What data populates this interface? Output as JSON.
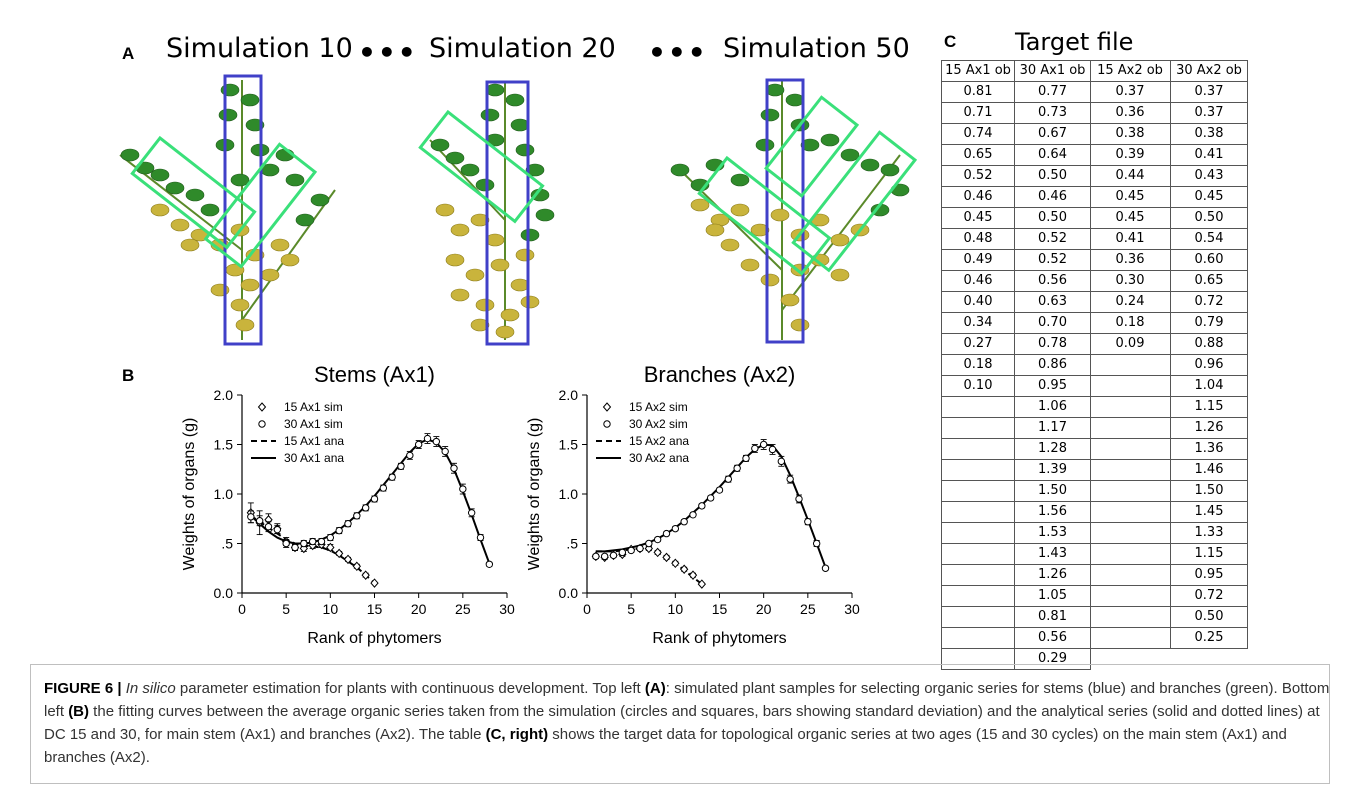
{
  "panel_a": {
    "label": "A",
    "titles": [
      "Simulation 10",
      "Simulation 20",
      "Simulation 50"
    ],
    "ellipsis": "•••"
  },
  "panel_b": {
    "label": "B"
  },
  "panel_c": {
    "label": "C",
    "title": "Target file",
    "headers": [
      "15 Ax1 ob",
      "30 Ax1 ob",
      "15 Ax2 ob",
      "30 Ax2 ob"
    ],
    "col_15ax1": [
      "0.81",
      "0.71",
      "0.74",
      "0.65",
      "0.52",
      "0.46",
      "0.45",
      "0.48",
      "0.49",
      "0.46",
      "0.40",
      "0.34",
      "0.27",
      "0.18",
      "0.10"
    ],
    "col_30ax1": [
      "0.77",
      "0.73",
      "0.67",
      "0.64",
      "0.50",
      "0.46",
      "0.50",
      "0.52",
      "0.52",
      "0.56",
      "0.63",
      "0.70",
      "0.78",
      "0.86",
      "0.95",
      "1.06",
      "1.17",
      "1.28",
      "1.39",
      "1.50",
      "1.56",
      "1.53",
      "1.43",
      "1.26",
      "1.05",
      "0.81",
      "0.56",
      "0.29"
    ],
    "col_15ax2": [
      "0.37",
      "0.36",
      "0.38",
      "0.39",
      "0.44",
      "0.45",
      "0.45",
      "0.41",
      "0.36",
      "0.30",
      "0.24",
      "0.18",
      "0.09"
    ],
    "col_30ax2": [
      "0.37",
      "0.37",
      "0.38",
      "0.41",
      "0.43",
      "0.45",
      "0.50",
      "0.54",
      "0.60",
      "0.65",
      "0.72",
      "0.79",
      "0.88",
      "0.96",
      "1.04",
      "1.15",
      "1.26",
      "1.36",
      "1.46",
      "1.50",
      "1.45",
      "1.33",
      "1.15",
      "0.95",
      "0.72",
      "0.50",
      "0.25"
    ]
  },
  "chart_data": [
    {
      "type": "scatter",
      "title": "Stems (Ax1)",
      "xlabel": "Rank of phytomers",
      "ylabel": "Weights of organs (g)",
      "xlim": [
        0,
        30
      ],
      "ylim": [
        0,
        2.0
      ],
      "xticks": [
        "0",
        "5",
        "10",
        "15",
        "20",
        "25",
        "30"
      ],
      "yticks": [
        "0.0",
        ".5",
        "1.0",
        "1.5",
        "2.0"
      ],
      "legend": [
        "15 Ax1 sim",
        "30 Ax1 sim",
        "15 Ax1 ana",
        "30 Ax1 ana"
      ],
      "series": [
        {
          "name": "15 Ax1 sim",
          "marker": "diamond",
          "x": [
            1,
            2,
            3,
            4,
            5,
            6,
            7,
            8,
            9,
            10,
            11,
            12,
            13,
            14,
            15
          ],
          "y": [
            0.81,
            0.71,
            0.74,
            0.65,
            0.52,
            0.46,
            0.45,
            0.48,
            0.49,
            0.46,
            0.4,
            0.34,
            0.27,
            0.18,
            0.1
          ],
          "err": [
            0.1,
            0.12,
            0.06,
            0.05,
            0.04,
            0.03,
            0.03,
            0.03,
            0.03,
            0.03,
            0.02,
            0.02,
            0.02,
            0.02,
            0.01
          ]
        },
        {
          "name": "30 Ax1 sim",
          "marker": "circle",
          "x": [
            1,
            2,
            3,
            4,
            5,
            6,
            7,
            8,
            9,
            10,
            11,
            12,
            13,
            14,
            15,
            16,
            17,
            18,
            19,
            20,
            21,
            22,
            23,
            24,
            25,
            26,
            27,
            28
          ],
          "y": [
            0.77,
            0.73,
            0.67,
            0.64,
            0.5,
            0.46,
            0.5,
            0.52,
            0.52,
            0.56,
            0.63,
            0.7,
            0.78,
            0.86,
            0.95,
            1.06,
            1.17,
            1.28,
            1.39,
            1.5,
            1.56,
            1.53,
            1.43,
            1.26,
            1.05,
            0.81,
            0.56,
            0.29
          ],
          "err": [
            0.06,
            0.05,
            0.05,
            0.04,
            0.04,
            0.03,
            0.03,
            0.03,
            0.03,
            0.03,
            0.03,
            0.03,
            0.03,
            0.03,
            0.03,
            0.03,
            0.03,
            0.03,
            0.04,
            0.04,
            0.05,
            0.05,
            0.05,
            0.05,
            0.05,
            0.04,
            0.03,
            0.02
          ]
        },
        {
          "name": "15 Ax1 ana",
          "line": "dashed",
          "x": [
            1,
            2,
            3,
            4,
            5,
            6,
            7,
            8,
            9,
            10,
            11,
            12,
            13,
            14,
            15
          ],
          "y": [
            0.78,
            0.72,
            0.66,
            0.6,
            0.54,
            0.5,
            0.48,
            0.47,
            0.46,
            0.43,
            0.38,
            0.32,
            0.26,
            0.18,
            0.1
          ]
        },
        {
          "name": "30 Ax1 ana",
          "line": "solid",
          "x": [
            1,
            2,
            3,
            4,
            5,
            6,
            7,
            8,
            9,
            10,
            11,
            12,
            13,
            14,
            15,
            16,
            17,
            18,
            19,
            20,
            21,
            22,
            23,
            24,
            25,
            26,
            27,
            28
          ],
          "y": [
            0.78,
            0.7,
            0.62,
            0.56,
            0.52,
            0.5,
            0.5,
            0.51,
            0.54,
            0.58,
            0.64,
            0.71,
            0.79,
            0.88,
            0.98,
            1.09,
            1.2,
            1.31,
            1.42,
            1.51,
            1.55,
            1.52,
            1.42,
            1.25,
            1.03,
            0.79,
            0.54,
            0.3
          ]
        }
      ]
    },
    {
      "type": "scatter",
      "title": "Branches (Ax2)",
      "xlabel": "Rank of phytomers",
      "ylabel": "Weights of organs (g)",
      "xlim": [
        0,
        30
      ],
      "ylim": [
        0,
        2.0
      ],
      "xticks": [
        "0",
        "5",
        "10",
        "15",
        "20",
        "25",
        "30"
      ],
      "yticks": [
        "0.0",
        ".5",
        "1.0",
        "1.5",
        "2.0"
      ],
      "legend": [
        "15 Ax2 sim",
        "30 Ax2 sim",
        "15 Ax2 ana",
        "30 Ax2 ana"
      ],
      "series": [
        {
          "name": "15 Ax2 sim",
          "marker": "diamond",
          "x": [
            1,
            2,
            3,
            4,
            5,
            6,
            7,
            8,
            9,
            10,
            11,
            12,
            13
          ],
          "y": [
            0.37,
            0.36,
            0.38,
            0.39,
            0.44,
            0.45,
            0.45,
            0.41,
            0.36,
            0.3,
            0.24,
            0.18,
            0.09
          ],
          "err": [
            0.02,
            0.02,
            0.02,
            0.02,
            0.02,
            0.02,
            0.02,
            0.02,
            0.02,
            0.02,
            0.02,
            0.02,
            0.01
          ]
        },
        {
          "name": "30 Ax2 sim",
          "marker": "circle",
          "x": [
            1,
            2,
            3,
            4,
            5,
            6,
            7,
            8,
            9,
            10,
            11,
            12,
            13,
            14,
            15,
            16,
            17,
            18,
            19,
            20,
            21,
            22,
            23,
            24,
            25,
            26,
            27
          ],
          "y": [
            0.37,
            0.37,
            0.38,
            0.41,
            0.43,
            0.45,
            0.5,
            0.54,
            0.6,
            0.65,
            0.72,
            0.79,
            0.88,
            0.96,
            1.04,
            1.15,
            1.26,
            1.36,
            1.46,
            1.5,
            1.45,
            1.33,
            1.15,
            0.95,
            0.72,
            0.5,
            0.25
          ],
          "err": [
            0.02,
            0.02,
            0.02,
            0.02,
            0.02,
            0.02,
            0.02,
            0.02,
            0.02,
            0.02,
            0.02,
            0.02,
            0.02,
            0.02,
            0.02,
            0.03,
            0.03,
            0.03,
            0.04,
            0.05,
            0.05,
            0.05,
            0.04,
            0.04,
            0.03,
            0.03,
            0.02
          ]
        },
        {
          "name": "15 Ax2 ana",
          "line": "dashed",
          "x": [
            1,
            2,
            3,
            4,
            5,
            6,
            7,
            8,
            9,
            10,
            11,
            12,
            13
          ],
          "y": [
            0.42,
            0.42,
            0.42,
            0.43,
            0.44,
            0.45,
            0.44,
            0.41,
            0.36,
            0.3,
            0.23,
            0.16,
            0.09
          ]
        },
        {
          "name": "30 Ax2 ana",
          "line": "solid",
          "x": [
            1,
            2,
            3,
            4,
            5,
            6,
            7,
            8,
            9,
            10,
            11,
            12,
            13,
            14,
            15,
            16,
            17,
            18,
            19,
            20,
            21,
            22,
            23,
            24,
            25,
            26,
            27
          ],
          "y": [
            0.42,
            0.42,
            0.43,
            0.44,
            0.46,
            0.48,
            0.51,
            0.55,
            0.6,
            0.66,
            0.73,
            0.81,
            0.89,
            0.98,
            1.07,
            1.17,
            1.27,
            1.37,
            1.45,
            1.5,
            1.49,
            1.38,
            1.19,
            0.97,
            0.74,
            0.5,
            0.26
          ]
        }
      ]
    }
  ],
  "caption": {
    "fig_label": "FIGURE 6 |",
    "italic": "In silico",
    "t1": " parameter estimation for plants with continuous development. Top left ",
    "b1": "(A)",
    "t2": ": simulated plant samples for selecting organic series for stems (blue) and branches (green). Bottom left ",
    "b2": "(B)",
    "t3": " the fitting curves between the average organic series taken from the simulation (circles and squares, bars showing standard deviation) and the analytical series (solid and dotted lines) at DC 15 and 30, for main stem (Ax1) and branches (Ax2). The table ",
    "b3": "(C, right)",
    "t4": " shows the target data for topological organic series at two ages (15 and 30 cycles) on the main stem (Ax1) and branches (Ax2)."
  }
}
